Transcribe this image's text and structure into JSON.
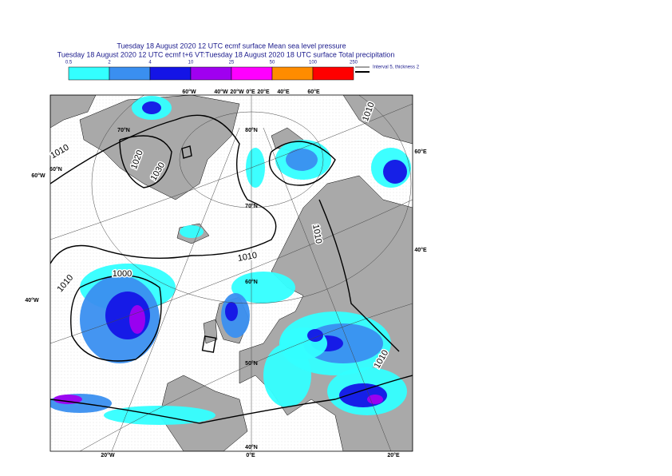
{
  "header": {
    "title_lines": [
      "Tuesday 18 August 2020 12 UTC ecmf surface  Mean sea level pressure",
      "Tuesday 18 August 2020 12 UTC ecmf t+6 VT:Tuesday 18 August 2020 18 UTC surface  Total precipitation"
    ]
  },
  "legend": {
    "labels": [
      "0.5",
      "2",
      "4",
      "10",
      "25",
      "50",
      "100",
      "250"
    ],
    "colors": [
      "#33ffff",
      "#3a8ff0",
      "#1414e6",
      "#a000f0",
      "#ff00ff",
      "#ff8c00",
      "#ff0000"
    ],
    "note": "Interval 5, thickness 2"
  },
  "graticule_labels": [
    "60°W",
    "40°W",
    "20°W",
    "0°E",
    "20°E",
    "60°E",
    "40°E",
    "60°W",
    "40°W",
    "20°W",
    "0°E",
    "20°E",
    "40°E",
    "60°E",
    "80°N",
    "70°N",
    "60°N",
    "50°N",
    "40°N",
    "70°N",
    "60°N"
  ],
  "contour_labels": [
    "1010",
    "1020",
    "1030",
    "1000",
    "1010",
    "1010",
    "1010",
    "1010",
    "1010"
  ]
}
